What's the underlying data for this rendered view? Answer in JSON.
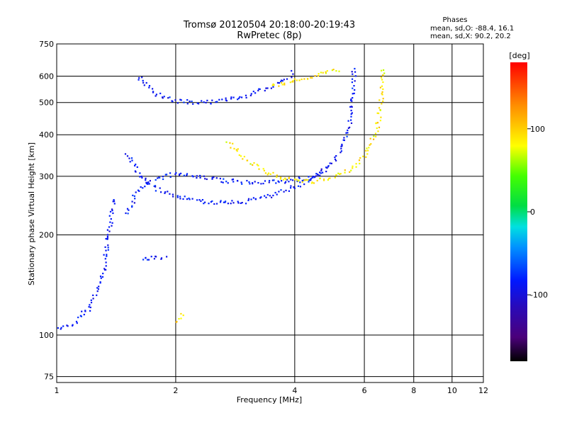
{
  "chart_data": {
    "type": "scatter",
    "title": "Tromsø 20120504 20:18:00-20:19:43",
    "subtitle": "RwPretec (8p)",
    "xlabel": "Frequency [MHz]",
    "ylabel": "Stationary phase Virtual Height [km]",
    "x_scale": "log",
    "y_scale": "log",
    "xlim": [
      1,
      12
    ],
    "ylim": [
      72,
      750
    ],
    "x_ticks": [
      "1",
      "2",
      "4",
      "6",
      "8",
      "10",
      "12"
    ],
    "x_tick_values": [
      1,
      2,
      4,
      6,
      8,
      10,
      12
    ],
    "y_ticks": [
      "75",
      "100",
      "200",
      "300",
      "400",
      "500",
      "600",
      "750"
    ],
    "y_tick_values": [
      75,
      100,
      200,
      300,
      400,
      500,
      600,
      750
    ],
    "grid": true,
    "phases_box": {
      "title": "Phases",
      "line_o": "mean, sd,O: -88.4, 16.1",
      "line_x": "mean, sd,X: 90.2, 20.2"
    },
    "colorbar": {
      "label": "[deg]",
      "range": [
        -180,
        180
      ],
      "ticks": [
        "100",
        "0",
        "-100"
      ],
      "tick_values": [
        100,
        0,
        -100
      ]
    },
    "series": [
      {
        "mode": "O",
        "phase_mean": -88.4,
        "phase_sd": 16.1,
        "traces": [
          {
            "x": [
              1.0,
              1.1,
              1.2,
              1.3,
              1.35,
              1.4
            ],
            "y": [
              103,
              108,
              120,
              145,
              200,
              260
            ]
          },
          {
            "x": [
              1.5,
              1.55,
              1.6,
              1.7,
              1.8,
              2.0,
              2.3,
              2.6,
              3.0,
              3.5,
              4.0,
              4.5,
              5.0,
              5.3,
              5.5,
              5.6,
              5.65
            ],
            "y": [
              350,
              330,
              310,
              290,
              275,
              262,
              252,
              250,
              252,
              262,
              280,
              300,
              330,
              370,
              420,
              500,
              640
            ]
          },
          {
            "x": [
              1.6,
              1.7,
              1.8,
              2.0,
              2.2,
              2.5,
              3.0,
              3.5,
              3.8,
              4.0
            ],
            "y": [
              600,
              560,
              530,
              505,
              500,
              502,
              520,
              560,
              590,
              620
            ]
          },
          {
            "x": [
              1.5,
              1.55,
              1.6,
              1.7,
              1.8,
              2.0,
              2.3,
              2.6,
              3.0,
              3.5,
              4.0,
              4.5,
              4.8
            ],
            "y": [
              230,
              250,
              270,
              285,
              295,
              305,
              300,
              292,
              288,
              288,
              292,
              300,
              310
            ]
          },
          {
            "x": [
              1.65,
              1.7,
              1.8,
              1.9
            ],
            "y": [
              170,
              170,
              170,
              170
            ]
          }
        ]
      },
      {
        "mode": "X",
        "phase_mean": 90.2,
        "phase_sd": 20.2,
        "traces": [
          {
            "x": [
              2.7,
              3.0,
              3.3,
              3.6,
              4.0,
              4.5,
              5.0,
              5.5,
              6.0,
              6.4,
              6.6,
              6.7
            ],
            "y": [
              380,
              340,
              315,
              300,
              292,
              290,
              298,
              315,
              345,
              400,
              480,
              640
            ]
          },
          {
            "x": [
              3.5,
              4.0,
              4.5,
              5.0,
              5.2
            ],
            "y": [
              560,
              580,
              600,
              620,
              630
            ]
          },
          {
            "x": [
              2.0,
              2.05,
              2.1
            ],
            "y": [
              110,
              113,
              116
            ]
          }
        ]
      }
    ]
  }
}
